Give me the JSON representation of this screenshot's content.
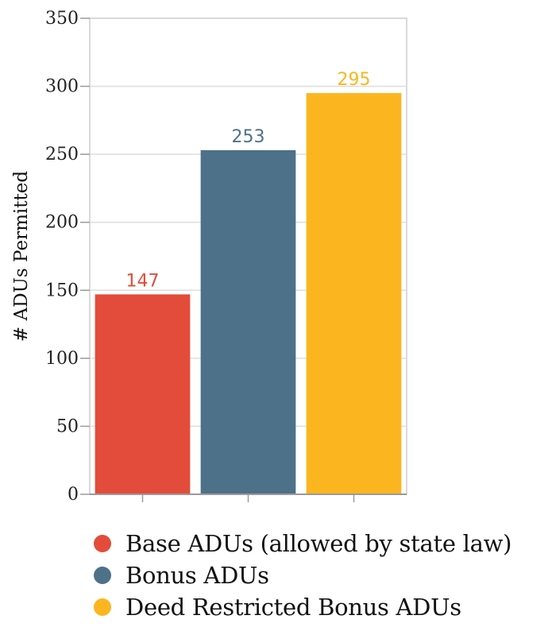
{
  "chart_data": {
    "type": "bar",
    "categories": [
      "Base ADUs (allowed by state law)",
      "Bonus ADUs",
      "Deed Restricted Bonus ADUs"
    ],
    "values": [
      147,
      253,
      295
    ],
    "colors": [
      "#e34c3a",
      "#4d7189",
      "#fbb61f"
    ],
    "ylabel": "# ADUs Permitted",
    "xlabel": "",
    "ylim": [
      0,
      350
    ],
    "yticks": [
      0,
      50,
      100,
      150,
      200,
      250,
      300,
      350
    ],
    "grid": true,
    "legend_position": "bottom",
    "data_labels": [
      "147",
      "253",
      "295"
    ]
  }
}
